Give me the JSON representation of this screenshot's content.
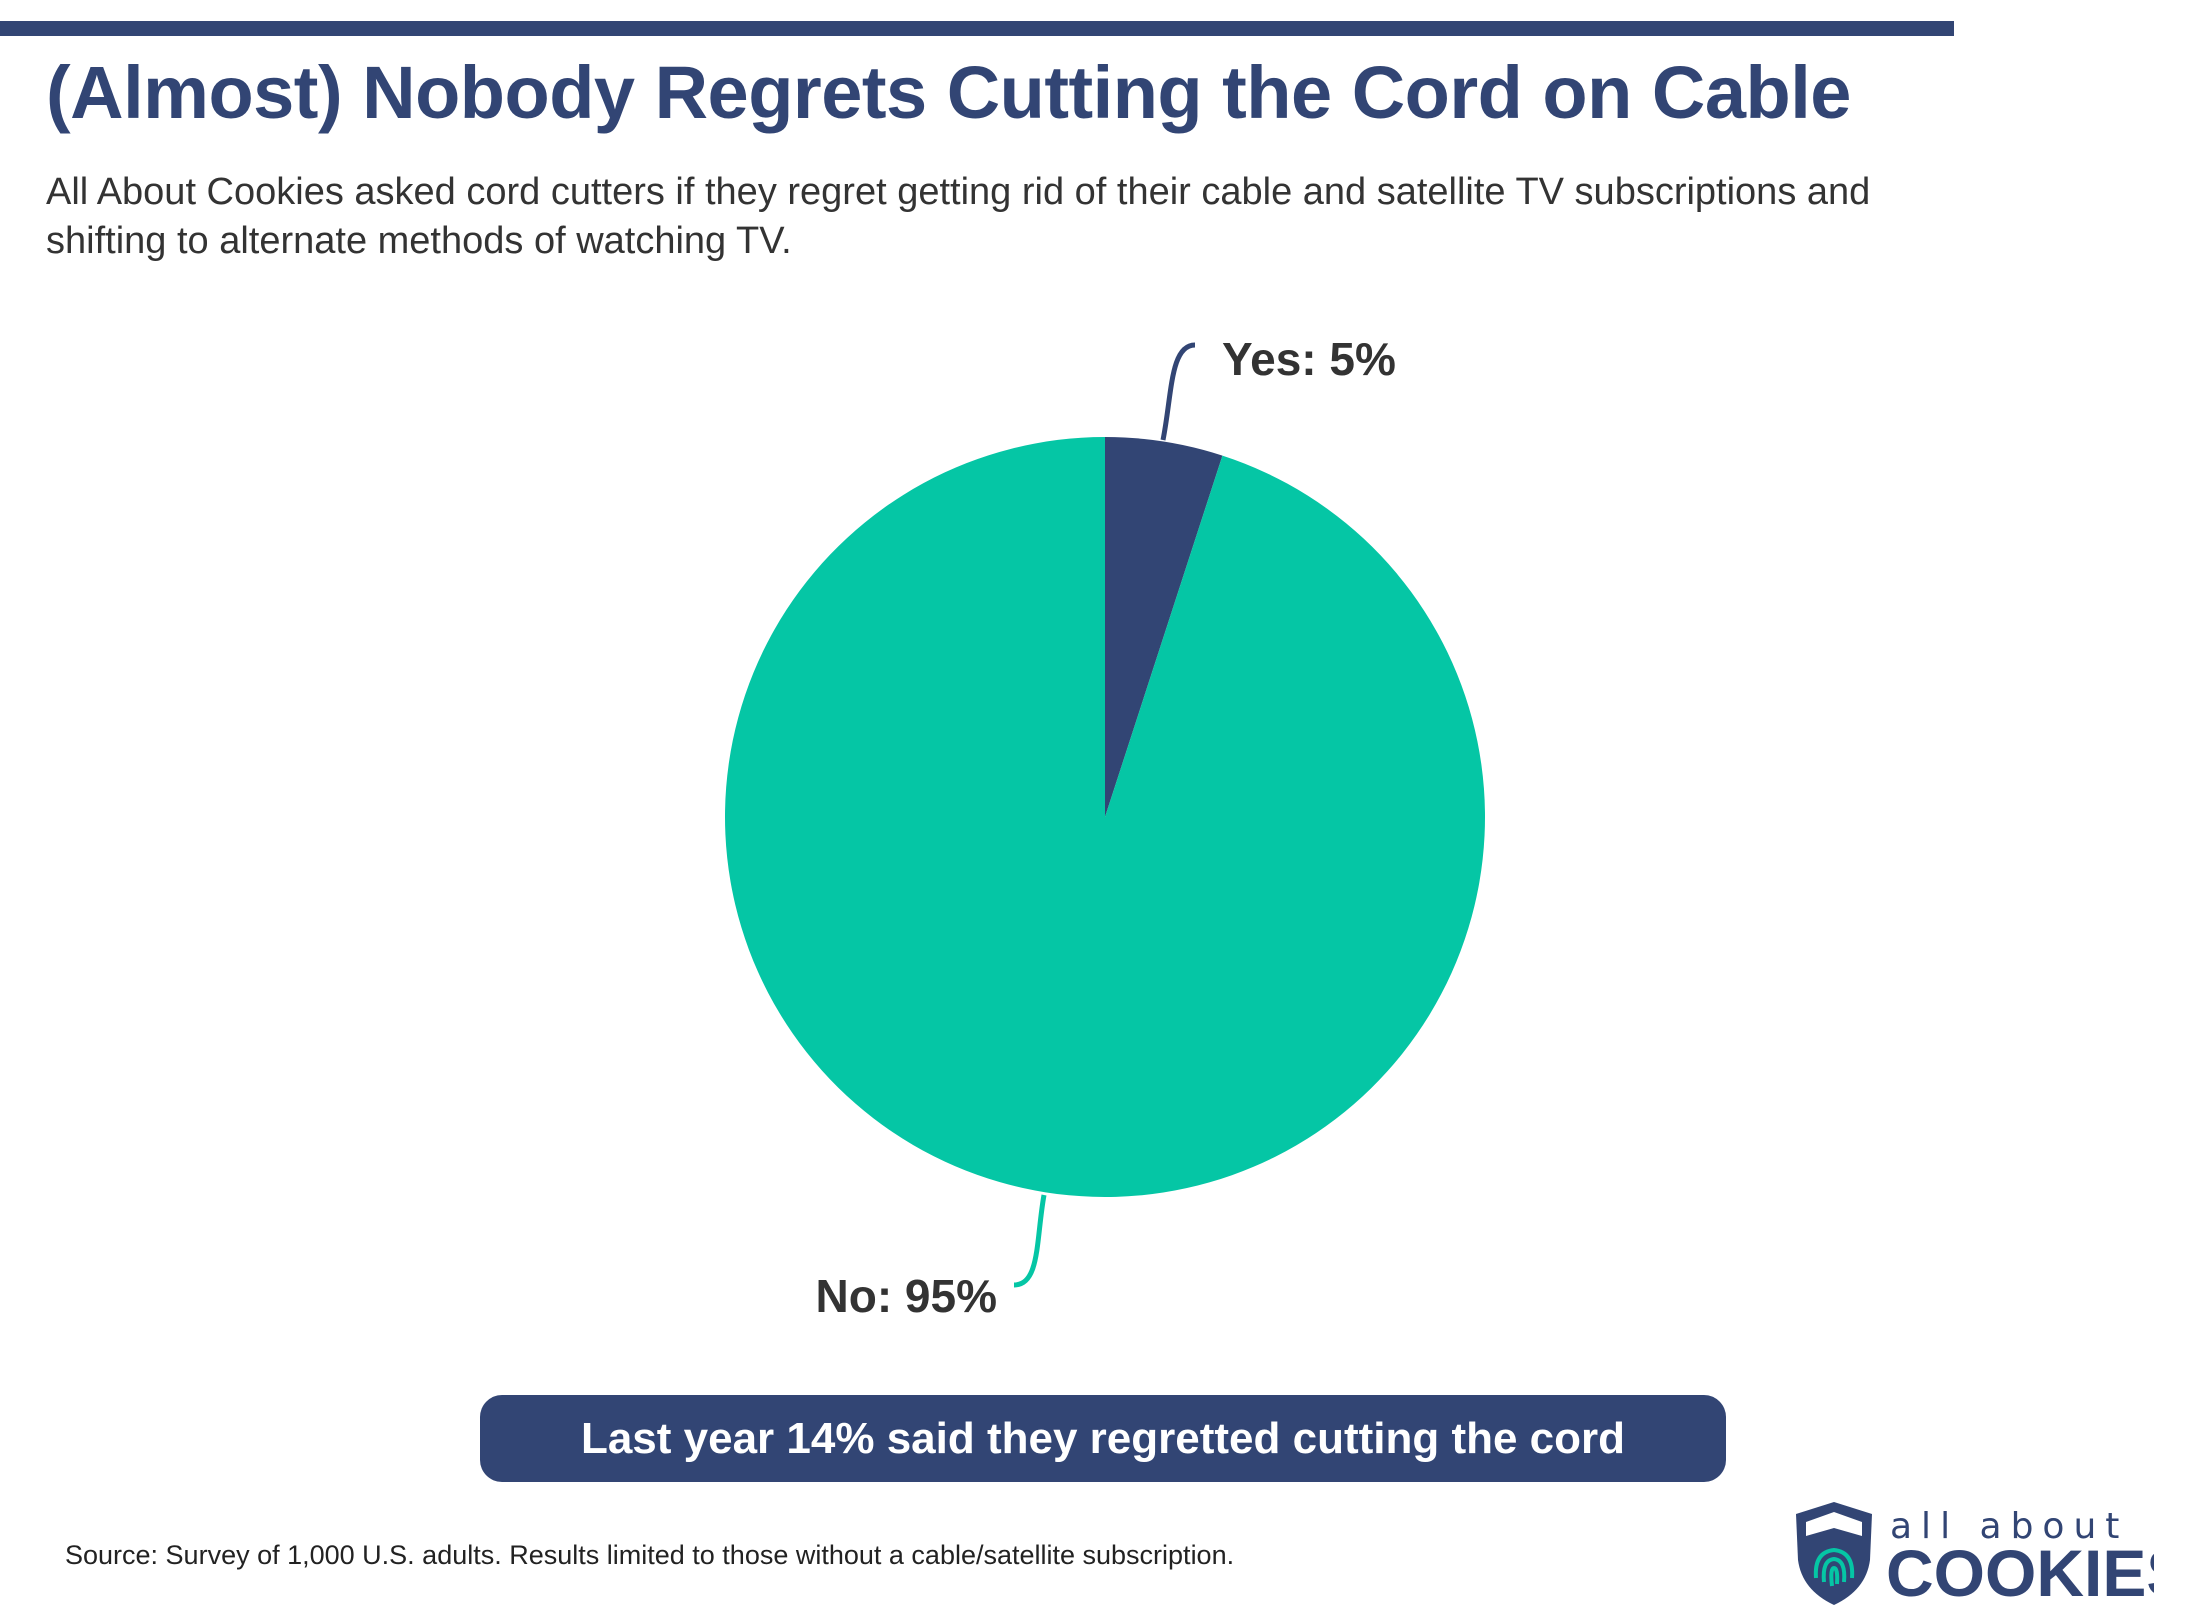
{
  "header": {
    "title": "(Almost) Nobody Regrets Cutting the Cord on Cable",
    "subtitle": "All About Cookies asked cord cutters if they regret getting rid of their cable and satellite TV subscriptions and shifting to alternate methods of watching TV."
  },
  "chart_data": {
    "type": "pie",
    "slices": [
      {
        "label": "Yes: 5%",
        "name": "Yes",
        "value": 5,
        "color": "#324574"
      },
      {
        "label": "No: 95%",
        "name": "No",
        "value": 95,
        "color": "#05c6a5"
      }
    ]
  },
  "callout": "Last year 14% said they regretted cutting the cord",
  "source": "Source: Survey of 1,000 U.S. adults. Results limited to those without a cable/satellite subscription.",
  "logo": {
    "line1": "all about",
    "line2": "COOKIES"
  },
  "colors": {
    "brand": "#324574",
    "accent": "#05c6a5"
  }
}
